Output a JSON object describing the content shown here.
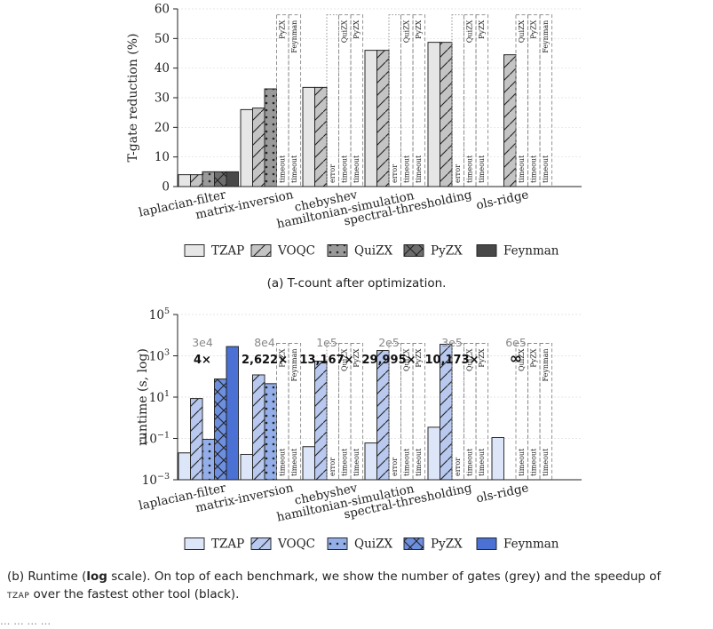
{
  "chart_data": [
    {
      "type": "bar",
      "ylabel": "T-gate reduction (%)",
      "ylim": [
        0,
        60
      ],
      "yticks": [
        "0",
        "10",
        "20",
        "30",
        "40",
        "50",
        "60"
      ],
      "categories": [
        "laplacian-filter",
        "matrix-inversion",
        "chebyshev",
        "hamiltonian-simulation",
        "spectral-thresholding",
        "ols-ridge"
      ],
      "series": [
        {
          "name": "TZAP",
          "values": [
            4,
            26,
            33.5,
            46,
            48.7,
            null
          ],
          "status": [
            "",
            "",
            "",
            "",
            "",
            ""
          ]
        },
        {
          "name": "VOQC",
          "values": [
            4,
            26.5,
            33.5,
            46,
            48.7,
            44.5
          ],
          "status": [
            "",
            "",
            "",
            "",
            "",
            ""
          ]
        },
        {
          "name": "QuiZX",
          "values": [
            5,
            33,
            null,
            null,
            null,
            null
          ],
          "status": [
            "",
            "",
            "error",
            "error",
            "error",
            "QuiZX"
          ]
        },
        {
          "name": "PyZX",
          "values": [
            5,
            null,
            null,
            null,
            null,
            null
          ],
          "status": [
            "",
            "PyZX",
            "QuiZX",
            "QuiZX",
            "QuiZX",
            "PyZX"
          ]
        },
        {
          "name": "Feynman",
          "values": [
            5,
            null,
            null,
            null,
            null,
            null
          ],
          "status": [
            "",
            "Feynman",
            "PyZX",
            "PyZX",
            "PyZX",
            "Feynman"
          ]
        }
      ],
      "legend_position": "bottom",
      "legend": [
        "TZAP",
        "VOQC",
        "QuiZX",
        "PyZX",
        "Feynman"
      ],
      "caption": "(a) T-count after optimization."
    },
    {
      "type": "bar",
      "ylabel": "runtime (s, log)",
      "yscale": "log",
      "ylim": [
        0.001,
        100000
      ],
      "yticks": [
        "10−3",
        "10−1",
        "101",
        "103",
        "105"
      ],
      "categories": [
        "laplacian-filter",
        "matrix-inversion",
        "chebyshev",
        "hamiltonian-simulation",
        "spectral-thresholding",
        "ols-ridge"
      ],
      "gate_counts": [
        "3e4",
        "8e4",
        "1e5",
        "2e5",
        "3e5",
        "6e5"
      ],
      "speedups": [
        "4×",
        "2,622×",
        "13,167×",
        "29,995×",
        "10,173×",
        "∞"
      ],
      "series": [
        {
          "name": "TZAP",
          "values": [
            0.02,
            0.017,
            0.04,
            0.06,
            0.35,
            0.11
          ]
        },
        {
          "name": "VOQC",
          "values": [
            8.5,
            120,
            550,
            1800,
            3600,
            null
          ]
        },
        {
          "name": "QuiZX",
          "values": [
            0.09,
            45,
            null,
            null,
            null,
            null
          ]
        },
        {
          "name": "PyZX",
          "values": [
            75,
            null,
            null,
            null,
            null,
            null
          ]
        },
        {
          "name": "Feynman",
          "values": [
            2800,
            null,
            null,
            null,
            null,
            null
          ]
        }
      ],
      "legend_position": "bottom",
      "legend": [
        "TZAP",
        "VOQC",
        "QuiZX",
        "PyZX",
        "Feynman"
      ],
      "caption_prefix": "(b) Runtime (",
      "caption_bold": "log",
      "caption_mid": " scale). On top of each benchmark, we show the number of gates (grey) and the speedup of",
      "caption_sc": "tzap",
      "caption_end": " over the fastest other tool (black)."
    }
  ],
  "placeholder_labels": {
    "timeout": "timeout",
    "error": "error"
  },
  "bottom_text": "... ... ... ..."
}
